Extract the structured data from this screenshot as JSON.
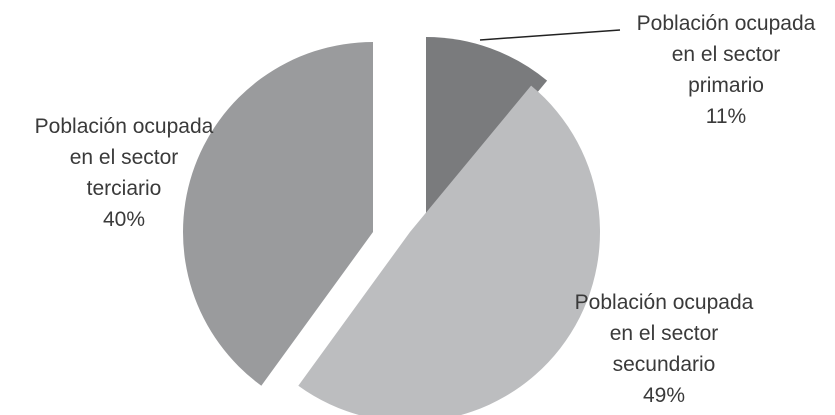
{
  "chart_data": {
    "type": "pie",
    "exploded": true,
    "slices": [
      {
        "name": "Población ocupada en el sector primario",
        "value": 11,
        "label_lines": [
          "Población ocupada",
          "en el sector",
          "primario",
          "11%"
        ],
        "color": "#7a7b7d"
      },
      {
        "name": "Población ocupada en el sector secundario",
        "value": 49,
        "label_lines": [
          "Población ocupada",
          "en el sector",
          "secundario",
          "49%"
        ],
        "color": "#bcbdbf"
      },
      {
        "name": "Población ocupada en el sector terciario",
        "value": 40,
        "label_lines": [
          "Población ocupada",
          "en el sector",
          "terciario",
          "40%"
        ],
        "color": "#9a9b9d"
      }
    ]
  }
}
